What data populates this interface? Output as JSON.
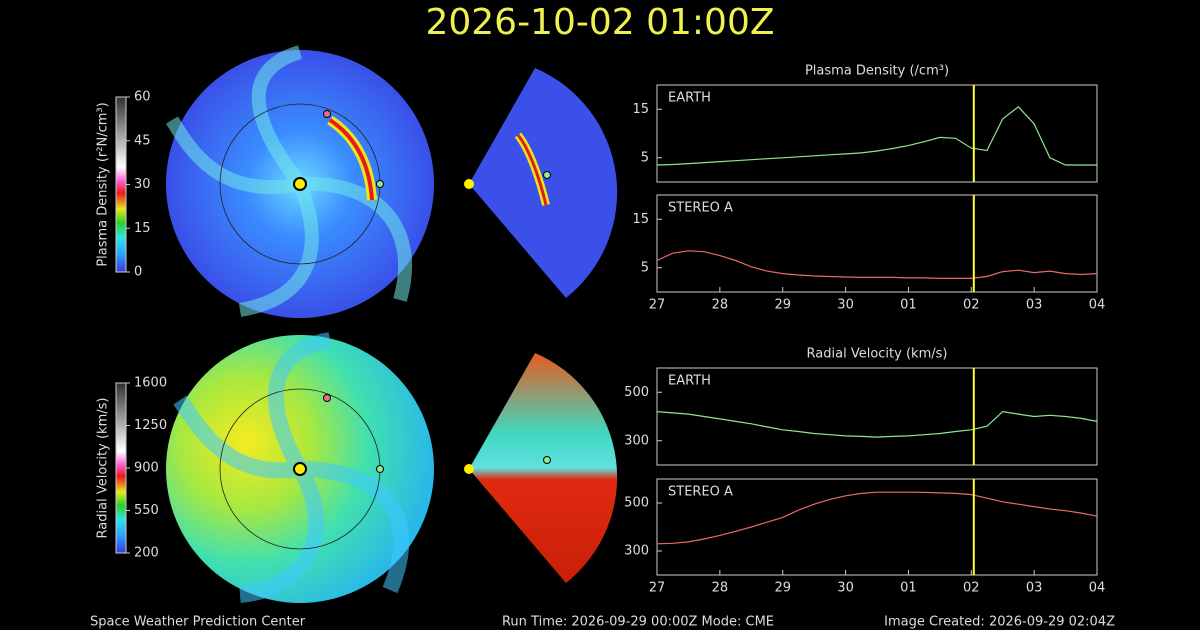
{
  "title": "2026-10-02 01:00Z",
  "footer": {
    "left": "Space Weather Prediction Center",
    "center": "Run Time: 2026-09-29 00:00Z  Mode: CME",
    "right": "Image Created: 2026-09-29 02:04Z"
  },
  "colorbars": [
    {
      "label": "Plasma Density (r²N/cm³)",
      "lim": [
        0,
        60
      ],
      "ticks": [
        0,
        15,
        30,
        45,
        60
      ]
    },
    {
      "label": "Radial Velocity (km/s)",
      "lim": [
        200,
        1600
      ],
      "ticks": [
        200,
        550,
        900,
        1250,
        1600
      ]
    }
  ],
  "chart_data": [
    {
      "type": "line",
      "title": "Plasma Density (/cm³)",
      "x": [
        0,
        0.25,
        0.5,
        0.75,
        1,
        1.25,
        1.5,
        1.75,
        2,
        2.25,
        2.5,
        2.75,
        3,
        3.25,
        3.5,
        3.75,
        4,
        4.25,
        4.5,
        4.75,
        5,
        5.25,
        5.5,
        5.75,
        6,
        6.25,
        6.5,
        6.75,
        7
      ],
      "series": [
        {
          "name": "EARTH",
          "color": "#8ee88e",
          "values": [
            3.5,
            3.6,
            3.8,
            4.0,
            4.2,
            4.4,
            4.6,
            4.8,
            5.0,
            5.2,
            5.4,
            5.6,
            5.8,
            6.0,
            6.4,
            6.9,
            7.5,
            8.3,
            9.2,
            9.0,
            7.0,
            6.5,
            13,
            15.5,
            12,
            5,
            3.5,
            3.5,
            3.5
          ]
        }
      ],
      "xlim": [
        0,
        7
      ],
      "ylim": [
        0,
        20
      ],
      "yticks": [
        5,
        15
      ],
      "now_x": 5.04
    },
    {
      "type": "line",
      "x": [
        0,
        0.25,
        0.5,
        0.75,
        1,
        1.25,
        1.5,
        1.75,
        2,
        2.25,
        2.5,
        2.75,
        3,
        3.25,
        3.5,
        3.75,
        4,
        4.25,
        4.5,
        4.75,
        5,
        5.25,
        5.5,
        5.75,
        6,
        6.25,
        6.5,
        6.75,
        7
      ],
      "series": [
        {
          "name": "STEREO A",
          "color": "#e86a6a",
          "values": [
            6.5,
            8.0,
            8.5,
            8.3,
            7.5,
            6.5,
            5.2,
            4.3,
            3.8,
            3.5,
            3.3,
            3.2,
            3.1,
            3.0,
            3.0,
            3.0,
            2.9,
            2.9,
            2.8,
            2.8,
            2.8,
            3.2,
            4.2,
            4.5,
            4.0,
            4.3,
            3.8,
            3.6,
            3.8
          ]
        }
      ],
      "xlim": [
        0,
        7
      ],
      "ylim": [
        0,
        20
      ],
      "yticks": [
        5,
        15
      ],
      "now_x": 5.04,
      "xticks": [
        {
          "value": 0,
          "label": "27"
        },
        {
          "value": 1,
          "label": "28"
        },
        {
          "value": 2,
          "label": "29"
        },
        {
          "value": 3,
          "label": "30"
        },
        {
          "value": 4,
          "label": "01"
        },
        {
          "value": 5,
          "label": "02"
        },
        {
          "value": 6,
          "label": "03"
        },
        {
          "value": 7,
          "label": "04"
        }
      ]
    },
    {
      "type": "line",
      "title": "Radial Velocity (km/s)",
      "x": [
        0,
        0.25,
        0.5,
        0.75,
        1,
        1.25,
        1.5,
        1.75,
        2,
        2.25,
        2.5,
        2.75,
        3,
        3.25,
        3.5,
        3.75,
        4,
        4.25,
        4.5,
        4.75,
        5,
        5.25,
        5.5,
        5.75,
        6,
        6.25,
        6.5,
        6.75,
        7
      ],
      "series": [
        {
          "name": "EARTH",
          "color": "#8ee88e",
          "values": [
            420,
            415,
            410,
            400,
            390,
            380,
            370,
            357,
            345,
            338,
            330,
            325,
            320,
            318,
            315,
            318,
            320,
            325,
            330,
            338,
            345,
            360,
            420,
            410,
            400,
            405,
            400,
            392,
            380
          ]
        }
      ],
      "xlim": [
        0,
        7
      ],
      "ylim": [
        200,
        600
      ],
      "yticks": [
        300,
        500
      ],
      "now_x": 5.04
    },
    {
      "type": "line",
      "x": [
        0,
        0.25,
        0.5,
        0.75,
        1,
        1.25,
        1.5,
        1.75,
        2,
        2.25,
        2.5,
        2.75,
        3,
        3.25,
        3.5,
        3.75,
        4,
        4.25,
        4.5,
        4.75,
        5,
        5.25,
        5.5,
        5.75,
        6,
        6.25,
        6.5,
        6.75,
        7
      ],
      "series": [
        {
          "name": "STEREO A",
          "color": "#e86a6a",
          "values": [
            330,
            332,
            338,
            350,
            365,
            382,
            400,
            420,
            440,
            470,
            495,
            515,
            530,
            540,
            545,
            545,
            545,
            544,
            542,
            540,
            535,
            520,
            505,
            495,
            485,
            475,
            468,
            458,
            445
          ]
        }
      ],
      "xlim": [
        0,
        7
      ],
      "ylim": [
        200,
        600
      ],
      "yticks": [
        300,
        500
      ],
      "now_x": 5.04,
      "xticks": [
        {
          "value": 0,
          "label": "27"
        },
        {
          "value": 1,
          "label": "28"
        },
        {
          "value": 2,
          "label": "29"
        },
        {
          "value": 3,
          "label": "30"
        },
        {
          "value": 4,
          "label": "01"
        },
        {
          "value": 5,
          "label": "02"
        },
        {
          "value": 6,
          "label": "03"
        },
        {
          "value": 7,
          "label": "04"
        }
      ]
    }
  ]
}
